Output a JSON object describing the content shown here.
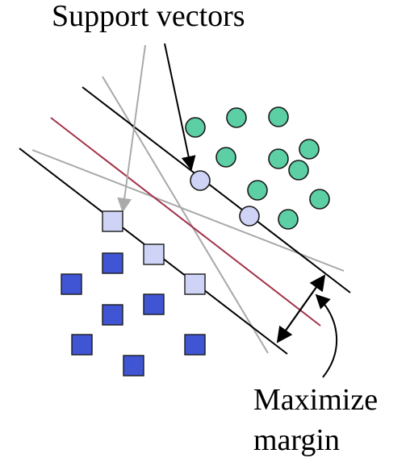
{
  "labels": {
    "support_vectors": "Support vectors",
    "maximize_line1": "Maximize",
    "maximize_line2": "margin"
  },
  "colors": {
    "green_class": "#5ccfa4",
    "blue_class": "#4055d4",
    "support_vector_fill": "#cfd4f7",
    "optimal_hyperplane": "#a3324a",
    "alternative_lines": "#a8a8a8",
    "margin_lines": "#000000"
  }
}
